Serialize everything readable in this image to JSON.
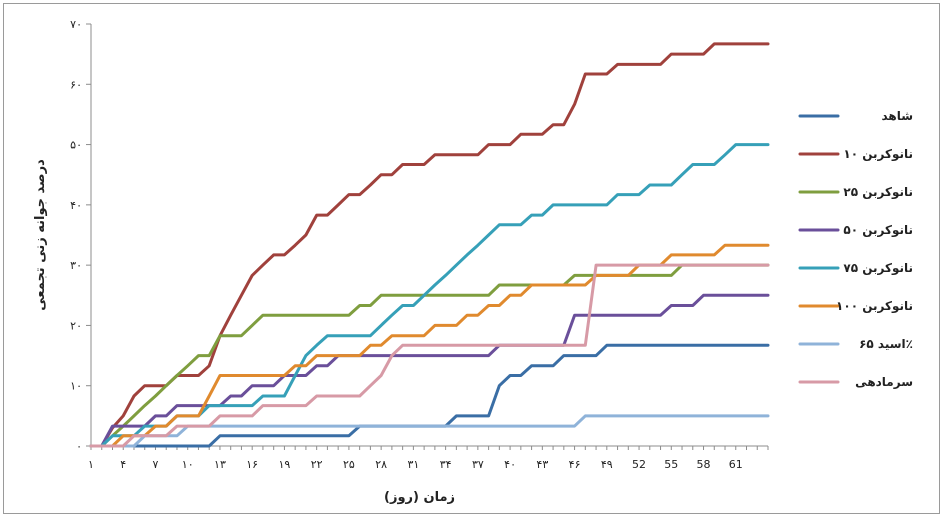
{
  "chart_data": {
    "type": "line",
    "xlabel": "زمان (روز)",
    "ylabel": "درصد جوانه زنی تجمعی",
    "ylim": [
      0,
      70
    ],
    "xlim": [
      1,
      64
    ],
    "yticks": [
      0,
      10,
      20,
      30,
      40,
      50,
      60,
      70
    ],
    "ytick_labels": [
      "۰",
      "۱۰",
      "۲۰",
      "۳۰",
      "۴۰",
      "۵۰",
      "۶۰",
      "۷۰"
    ],
    "xticks": [
      1,
      4,
      7,
      10,
      13,
      16,
      19,
      22,
      25,
      28,
      31,
      34,
      37,
      40,
      43,
      46,
      49,
      52,
      55,
      58,
      61
    ],
    "xtick_labels": [
      "۱",
      "۴",
      "۷",
      "۱۰",
      "۱۳",
      "۱۶",
      "۱۹",
      "۲۲",
      "۲۵",
      "۲۸",
      "۳۱",
      "۳۴",
      "۳۷",
      "۴۰",
      "۴۳",
      "۴۶",
      "۴۹",
      "52",
      "55",
      "58",
      "61"
    ],
    "grid": false,
    "legend_position": "right",
    "series": [
      {
        "name": "شاهد",
        "color": "#3a6ea5",
        "points": [
          [
            1,
            0
          ],
          [
            12,
            0
          ],
          [
            13,
            1.7
          ],
          [
            25,
            1.7
          ],
          [
            26,
            3.3
          ],
          [
            34,
            3.3
          ],
          [
            35,
            5
          ],
          [
            38,
            5
          ],
          [
            39,
            10
          ],
          [
            40,
            11.7
          ],
          [
            41,
            11.7
          ],
          [
            42,
            13.3
          ],
          [
            44,
            13.3
          ],
          [
            45,
            15
          ],
          [
            48,
            15
          ],
          [
            49,
            16.7
          ],
          [
            64,
            16.7
          ]
        ]
      },
      {
        "name": "نانوکربن ۱۰",
        "color": "#a0413c",
        "points": [
          [
            1,
            0
          ],
          [
            2,
            0
          ],
          [
            3,
            3
          ],
          [
            4,
            5
          ],
          [
            5,
            8.3
          ],
          [
            6,
            10
          ],
          [
            8,
            10
          ],
          [
            9,
            11.7
          ],
          [
            11,
            11.7
          ],
          [
            12,
            13.3
          ],
          [
            13,
            18.3
          ],
          [
            14,
            21.7
          ],
          [
            15,
            25
          ],
          [
            16,
            28.3
          ],
          [
            17,
            30
          ],
          [
            18,
            31.7
          ],
          [
            19,
            31.7
          ],
          [
            20,
            33.3
          ],
          [
            21,
            35
          ],
          [
            22,
            38.3
          ],
          [
            23,
            38.3
          ],
          [
            24,
            40
          ],
          [
            25,
            41.7
          ],
          [
            26,
            41.7
          ],
          [
            27,
            43.3
          ],
          [
            28,
            45
          ],
          [
            29,
            45
          ],
          [
            30,
            46.7
          ],
          [
            32,
            46.7
          ],
          [
            33,
            48.3
          ],
          [
            37,
            48.3
          ],
          [
            38,
            50
          ],
          [
            40,
            50
          ],
          [
            41,
            51.7
          ],
          [
            43,
            51.7
          ],
          [
            44,
            53.3
          ],
          [
            45,
            53.3
          ],
          [
            46,
            56.7
          ],
          [
            47,
            61.7
          ],
          [
            49,
            61.7
          ],
          [
            50,
            63.3
          ],
          [
            54,
            63.3
          ],
          [
            55,
            65
          ],
          [
            58,
            65
          ],
          [
            59,
            66.7
          ],
          [
            64,
            66.7
          ]
        ]
      },
      {
        "name": "نانوکربن ۲۵",
        "color": "#7f9e3f",
        "points": [
          [
            1,
            0
          ],
          [
            2,
            0
          ],
          [
            3,
            1.7
          ],
          [
            4,
            3.3
          ],
          [
            5,
            5
          ],
          [
            6,
            6.7
          ],
          [
            7,
            8.3
          ],
          [
            8,
            10
          ],
          [
            9,
            11.7
          ],
          [
            10,
            13.3
          ],
          [
            11,
            15
          ],
          [
            12,
            15
          ],
          [
            13,
            18.3
          ],
          [
            15,
            18.3
          ],
          [
            16,
            20
          ],
          [
            17,
            21.7
          ],
          [
            25,
            21.7
          ],
          [
            26,
            23.3
          ],
          [
            27,
            23.3
          ],
          [
            28,
            25
          ],
          [
            38,
            25
          ],
          [
            39,
            26.7
          ],
          [
            45,
            26.7
          ],
          [
            46,
            28.3
          ],
          [
            55,
            28.3
          ],
          [
            56,
            30
          ],
          [
            64,
            30
          ]
        ]
      },
      {
        "name": "نانوکربن ۵۰",
        "color": "#6a4f9a",
        "points": [
          [
            1,
            0
          ],
          [
            2,
            0
          ],
          [
            3,
            3.3
          ],
          [
            6,
            3.3
          ],
          [
            7,
            5
          ],
          [
            8,
            5
          ],
          [
            9,
            6.7
          ],
          [
            13,
            6.7
          ],
          [
            14,
            8.3
          ],
          [
            15,
            8.3
          ],
          [
            16,
            10
          ],
          [
            18,
            10
          ],
          [
            19,
            11.7
          ],
          [
            21,
            11.7
          ],
          [
            22,
            13.3
          ],
          [
            23,
            13.3
          ],
          [
            24,
            15
          ],
          [
            38,
            15
          ],
          [
            39,
            16.7
          ],
          [
            45,
            16.7
          ],
          [
            46,
            21.7
          ],
          [
            54,
            21.7
          ],
          [
            55,
            23.3
          ],
          [
            57,
            23.3
          ],
          [
            58,
            25
          ],
          [
            64,
            25
          ]
        ]
      },
      {
        "name": "نانوکربن ۷۵",
        "color": "#36a0b8",
        "points": [
          [
            1,
            0
          ],
          [
            2,
            0
          ],
          [
            3,
            1.7
          ],
          [
            5,
            1.7
          ],
          [
            6,
            3.3
          ],
          [
            8,
            3.3
          ],
          [
            9,
            5
          ],
          [
            11,
            5
          ],
          [
            12,
            6.7
          ],
          [
            16,
            6.7
          ],
          [
            17,
            8.3
          ],
          [
            19,
            8.3
          ],
          [
            20,
            11.7
          ],
          [
            21,
            15
          ],
          [
            22,
            16.7
          ],
          [
            23,
            18.3
          ],
          [
            27,
            18.3
          ],
          [
            28,
            20
          ],
          [
            29,
            21.7
          ],
          [
            30,
            23.3
          ],
          [
            31,
            23.3
          ],
          [
            32,
            25
          ],
          [
            33,
            26.7
          ],
          [
            34,
            28.3
          ],
          [
            35,
            30
          ],
          [
            36,
            31.7
          ],
          [
            37,
            33.3
          ],
          [
            38,
            35
          ],
          [
            39,
            36.7
          ],
          [
            41,
            36.7
          ],
          [
            42,
            38.3
          ],
          [
            43,
            38.3
          ],
          [
            44,
            40
          ],
          [
            49,
            40
          ],
          [
            50,
            41.7
          ],
          [
            52,
            41.7
          ],
          [
            53,
            43.3
          ],
          [
            55,
            43.3
          ],
          [
            56,
            45
          ],
          [
            57,
            46.7
          ],
          [
            59,
            46.7
          ],
          [
            60,
            48.3
          ],
          [
            61,
            50
          ],
          [
            64,
            50
          ]
        ]
      },
      {
        "name": "نانوکربن ۱۰۰",
        "color": "#e08a2e",
        "points": [
          [
            1,
            0
          ],
          [
            3,
            0
          ],
          [
            4,
            1.7
          ],
          [
            6,
            1.7
          ],
          [
            7,
            3.3
          ],
          [
            8,
            3.3
          ],
          [
            9,
            5
          ],
          [
            11,
            5
          ],
          [
            12,
            8.3
          ],
          [
            13,
            11.7
          ],
          [
            19,
            11.7
          ],
          [
            20,
            13.3
          ],
          [
            21,
            13.3
          ],
          [
            22,
            15
          ],
          [
            26,
            15
          ],
          [
            27,
            16.7
          ],
          [
            28,
            16.7
          ],
          [
            29,
            18.3
          ],
          [
            32,
            18.3
          ],
          [
            33,
            20
          ],
          [
            35,
            20
          ],
          [
            36,
            21.7
          ],
          [
            37,
            21.7
          ],
          [
            38,
            23.3
          ],
          [
            39,
            23.3
          ],
          [
            40,
            25
          ],
          [
            41,
            25
          ],
          [
            42,
            26.7
          ],
          [
            47,
            26.7
          ],
          [
            48,
            28.3
          ],
          [
            51,
            28.3
          ],
          [
            52,
            30
          ],
          [
            54,
            30
          ],
          [
            55,
            31.7
          ],
          [
            59,
            31.7
          ],
          [
            60,
            33.3
          ],
          [
            64,
            33.3
          ]
        ]
      },
      {
        "name": "اسید ۶۵٪",
        "color": "#8fb3d9",
        "points": [
          [
            1,
            0
          ],
          [
            5,
            0
          ],
          [
            6,
            1.7
          ],
          [
            9,
            1.7
          ],
          [
            10,
            3.3
          ],
          [
            46,
            3.3
          ],
          [
            47,
            5
          ],
          [
            64,
            5
          ]
        ]
      },
      {
        "name": "سرمادهی",
        "color": "#d79aa6",
        "points": [
          [
            1,
            0
          ],
          [
            4,
            0
          ],
          [
            5,
            1.7
          ],
          [
            8,
            1.7
          ],
          [
            9,
            3.3
          ],
          [
            12,
            3.3
          ],
          [
            13,
            5
          ],
          [
            16,
            5
          ],
          [
            17,
            6.7
          ],
          [
            21,
            6.7
          ],
          [
            22,
            8.3
          ],
          [
            26,
            8.3
          ],
          [
            27,
            10
          ],
          [
            28,
            11.7
          ],
          [
            29,
            15
          ],
          [
            30,
            16.7
          ],
          [
            47,
            16.7
          ],
          [
            48,
            30
          ],
          [
            64,
            30
          ]
        ]
      }
    ]
  }
}
